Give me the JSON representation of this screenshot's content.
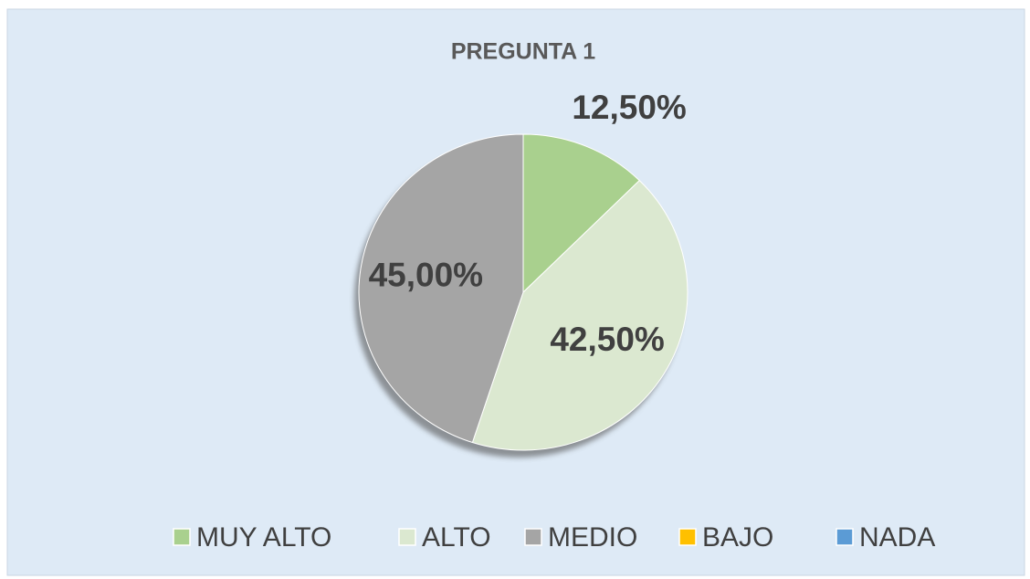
{
  "chart_data": {
    "type": "pie",
    "title": "PREGUNTA 1",
    "categories": [
      "MUY ALTO",
      "ALTO",
      "MEDIO",
      "BAJO",
      "NADA"
    ],
    "values": [
      12.5,
      42.5,
      45,
      0,
      0
    ],
    "value_labels": [
      "12,50%",
      "42,50%",
      "45,00%",
      null,
      null
    ],
    "colors": [
      "#a9d08e",
      "#dbe8d0",
      "#a5a5a5",
      "#ffc000",
      "#5b9bd5"
    ],
    "legend": "bottom"
  }
}
